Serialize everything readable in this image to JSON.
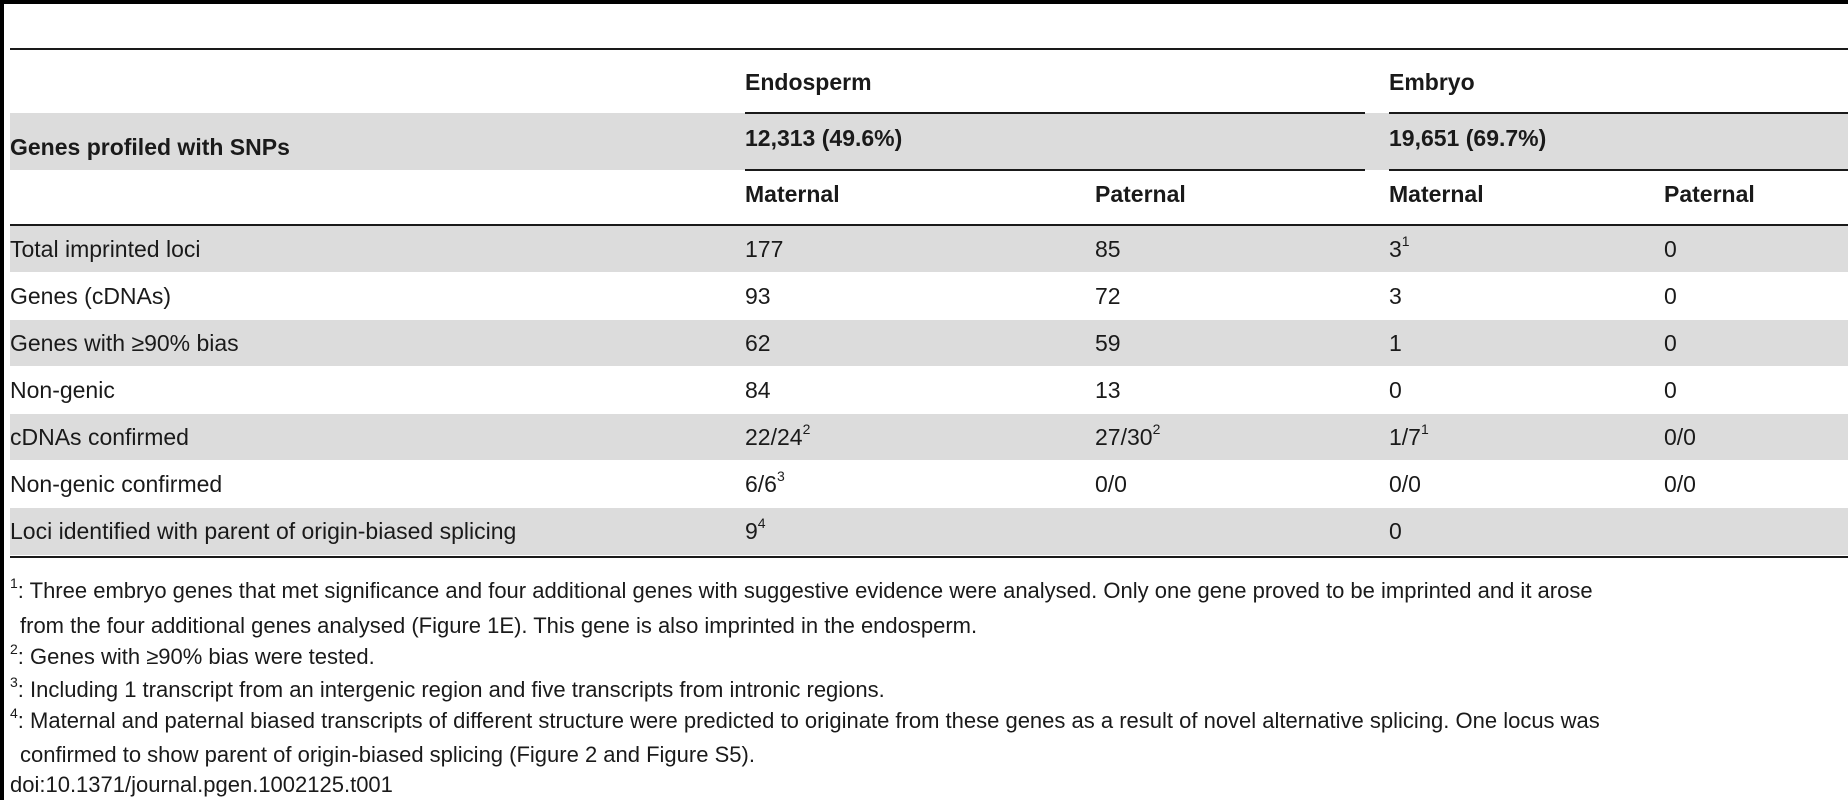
{
  "table": {
    "header": {
      "group_endosperm": "Endosperm",
      "group_embryo": "Embryo",
      "row_label": "Genes profiled with SNPs",
      "endosperm_profiled": "12,313 (49.6%)",
      "embryo_profiled": "19,651 (69.7%)",
      "endo_maternal": "Maternal",
      "endo_paternal": "Paternal",
      "emb_maternal": "Maternal",
      "emb_paternal": "Paternal"
    },
    "rows": [
      {
        "label": "Total imprinted loci",
        "endo_m": "177",
        "endo_p": "85",
        "emb_m": "3",
        "emb_m_sup": "1",
        "emb_p": "0"
      },
      {
        "label": "Genes (cDNAs)",
        "endo_m": "93",
        "endo_p": "72",
        "emb_m": "3",
        "emb_p": "0"
      },
      {
        "label": "Genes with ≥90% bias",
        "endo_m": "62",
        "endo_p": "59",
        "emb_m": "1",
        "emb_p": "0"
      },
      {
        "label": "Non-genic",
        "endo_m": "84",
        "endo_p": "13",
        "emb_m": "0",
        "emb_p": "0"
      },
      {
        "label": "cDNAs confirmed",
        "endo_m": "22/24",
        "endo_m_sup": "2",
        "endo_p": "27/30",
        "endo_p_sup": "2",
        "emb_m": "1/7",
        "emb_m_sup": "1",
        "emb_p": "0/0"
      },
      {
        "label": "Non-genic confirmed",
        "endo_m": "6/6",
        "endo_m_sup": "3",
        "endo_p": "0/0",
        "emb_m": "0/0",
        "emb_p": "0/0"
      },
      {
        "label": "Loci identified with parent of origin-biased splicing",
        "endo_m": "9",
        "endo_m_sup": "4",
        "emb_m": "0"
      }
    ]
  },
  "footnotes": [
    {
      "mark": "1",
      "line1": ": Three embryo genes that met significance and four additional genes with suggestive evidence were analysed. Only one gene proved to be imprinted and it arose",
      "line2": "from the four additional genes analysed (Figure 1E). This gene is also imprinted in the endosperm."
    },
    {
      "mark": "2",
      "line1": ": Genes with ≥90% bias were tested."
    },
    {
      "mark": "3",
      "line1": ": Including 1 transcript from an intergenic region and five transcripts from intronic regions."
    },
    {
      "mark": "4",
      "line1": ": Maternal and paternal biased transcripts of different structure were predicted to originate from these genes as a result of novel alternative splicing. One locus was",
      "line2": "confirmed to show parent of origin-biased splicing (Figure 2 and Figure S5)."
    }
  ],
  "doi": "doi:10.1371/journal.pgen.1002125.t001"
}
